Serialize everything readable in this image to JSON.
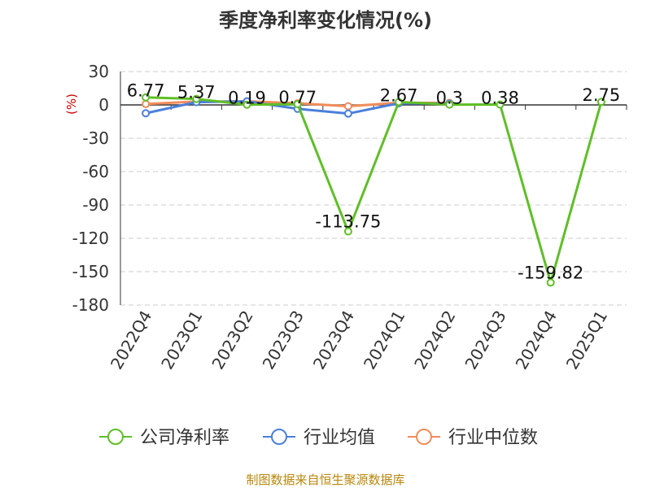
{
  "chart_data": {
    "type": "line",
    "title": "季度净利率变化情况(%)",
    "ylabel": "(%)",
    "ylim": [
      -180,
      30
    ],
    "yticks": [
      30,
      0,
      -30,
      -60,
      -90,
      -120,
      -150,
      -180
    ],
    "grid": true,
    "legend_position": "bottom",
    "categories": [
      "2022Q4",
      "2023Q1",
      "2023Q2",
      "2023Q3",
      "2023Q4",
      "2024Q1",
      "2024Q2",
      "2024Q3",
      "2024Q4",
      "2025Q1"
    ],
    "series": [
      {
        "name": "公司净利率",
        "color": "#5fbf26",
        "values": [
          6.77,
          5.37,
          0.19,
          0.77,
          -113.75,
          2.67,
          0.3,
          0.38,
          -159.82,
          2.75
        ],
        "labels": [
          "6.77",
          "5.37",
          "0.19",
          "0.77",
          "-113.75",
          "2.67",
          "0.3",
          "0.38",
          "-159.82",
          "2.75"
        ]
      },
      {
        "name": "行业均值",
        "color": "#4a7fdc",
        "values": [
          -7.5,
          2.5,
          3.2,
          -3.5,
          -7.8,
          1.5,
          1.2,
          null,
          null,
          null
        ]
      },
      {
        "name": "行业中位数",
        "color": "#f28c5a",
        "values": [
          0.8,
          3.0,
          3.3,
          1.5,
          -1.2,
          2.0,
          1.8,
          null,
          null,
          null
        ]
      }
    ],
    "source": "制图数据来自恒生聚源数据库"
  }
}
